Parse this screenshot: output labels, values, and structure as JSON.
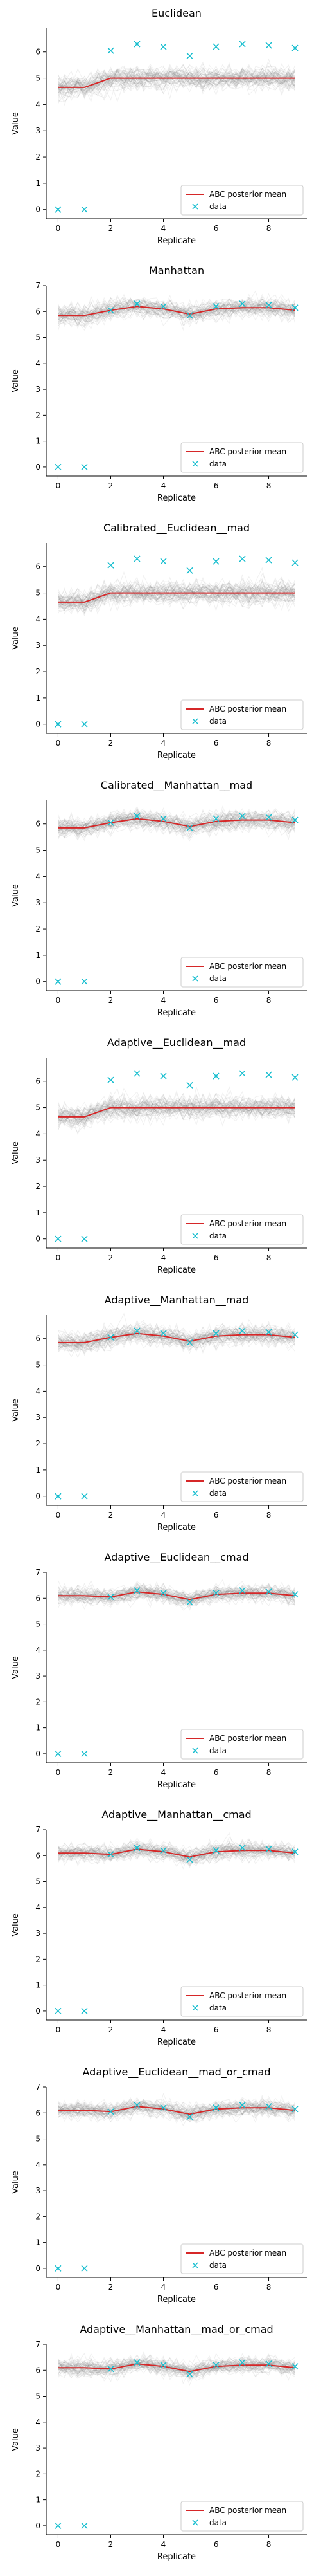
{
  "common": {
    "xlabel": "Replicate",
    "ylabel": "Value",
    "xticks": [
      0,
      2,
      4,
      6,
      8
    ],
    "yticks": [
      0,
      1,
      2,
      3,
      4,
      5,
      6,
      7
    ],
    "legend": {
      "mean_label": "ABC posterior mean",
      "data_label": "data",
      "placement": "lower-right"
    },
    "colors": {
      "mean": "#d62728",
      "data": "#17becf",
      "samples": "#808080"
    }
  },
  "chart_data": [
    {
      "type": "line",
      "title": "Euclidean",
      "xlabel": "Replicate",
      "ylabel": "Value",
      "xlim": [
        -0.45,
        9.45
      ],
      "ylim": [
        -0.35,
        6.9
      ],
      "yticks": [
        0,
        1,
        2,
        3,
        4,
        5,
        6
      ],
      "x": [
        0,
        1,
        2,
        3,
        4,
        5,
        6,
        7,
        8,
        9
      ],
      "series": [
        {
          "name": "ABC posterior mean",
          "values": [
            4.65,
            4.65,
            5.0,
            5.0,
            5.0,
            5.0,
            5.0,
            5.0,
            5.0,
            5.0
          ],
          "band": 0.4
        },
        {
          "name": "data",
          "values": [
            0.0,
            0.0,
            6.05,
            6.3,
            6.2,
            5.85,
            6.2,
            6.3,
            6.25,
            6.15
          ]
        }
      ]
    },
    {
      "type": "line",
      "title": "Manhattan",
      "xlabel": "Replicate",
      "ylabel": "Value",
      "xlim": [
        -0.45,
        9.45
      ],
      "ylim": [
        -0.35,
        7.0
      ],
      "yticks": [
        0,
        1,
        2,
        3,
        4,
        5,
        6,
        7
      ],
      "x": [
        0,
        1,
        2,
        3,
        4,
        5,
        6,
        7,
        8,
        9
      ],
      "series": [
        {
          "name": "ABC posterior mean",
          "values": [
            5.85,
            5.85,
            6.05,
            6.2,
            6.1,
            5.9,
            6.1,
            6.15,
            6.15,
            6.05
          ],
          "band": 0.35
        },
        {
          "name": "data",
          "values": [
            0.0,
            0.0,
            6.05,
            6.3,
            6.2,
            5.85,
            6.2,
            6.3,
            6.25,
            6.15
          ]
        }
      ]
    },
    {
      "type": "line",
      "title": "Calibrated__Euclidean__mad",
      "xlabel": "Replicate",
      "ylabel": "Value",
      "xlim": [
        -0.45,
        9.45
      ],
      "ylim": [
        -0.35,
        6.9
      ],
      "yticks": [
        0,
        1,
        2,
        3,
        4,
        5,
        6
      ],
      "x": [
        0,
        1,
        2,
        3,
        4,
        5,
        6,
        7,
        8,
        9
      ],
      "series": [
        {
          "name": "ABC posterior mean",
          "values": [
            4.65,
            4.65,
            5.0,
            5.0,
            5.0,
            5.0,
            5.0,
            5.0,
            5.0,
            5.0
          ],
          "band": 0.4
        },
        {
          "name": "data",
          "values": [
            0.0,
            0.0,
            6.05,
            6.3,
            6.2,
            5.85,
            6.2,
            6.3,
            6.25,
            6.15
          ]
        }
      ]
    },
    {
      "type": "line",
      "title": "Calibrated__Manhattan__mad",
      "xlabel": "Replicate",
      "ylabel": "Value",
      "xlim": [
        -0.45,
        9.45
      ],
      "ylim": [
        -0.35,
        6.9
      ],
      "yticks": [
        0,
        1,
        2,
        3,
        4,
        5,
        6
      ],
      "x": [
        0,
        1,
        2,
        3,
        4,
        5,
        6,
        7,
        8,
        9
      ],
      "series": [
        {
          "name": "ABC posterior mean",
          "values": [
            5.85,
            5.85,
            6.05,
            6.2,
            6.1,
            5.9,
            6.1,
            6.15,
            6.15,
            6.05
          ],
          "band": 0.35
        },
        {
          "name": "data",
          "values": [
            0.0,
            0.0,
            6.05,
            6.3,
            6.2,
            5.85,
            6.2,
            6.3,
            6.25,
            6.15
          ]
        }
      ]
    },
    {
      "type": "line",
      "title": "Adaptive__Euclidean__mad",
      "xlabel": "Replicate",
      "ylabel": "Value",
      "xlim": [
        -0.45,
        9.45
      ],
      "ylim": [
        -0.35,
        6.9
      ],
      "yticks": [
        0,
        1,
        2,
        3,
        4,
        5,
        6
      ],
      "x": [
        0,
        1,
        2,
        3,
        4,
        5,
        6,
        7,
        8,
        9
      ],
      "series": [
        {
          "name": "ABC posterior mean",
          "values": [
            4.65,
            4.65,
            5.0,
            5.0,
            5.0,
            5.0,
            5.0,
            5.0,
            5.0,
            5.0
          ],
          "band": 0.4
        },
        {
          "name": "data",
          "values": [
            0.0,
            0.0,
            6.05,
            6.3,
            6.2,
            5.85,
            6.2,
            6.3,
            6.25,
            6.15
          ]
        }
      ]
    },
    {
      "type": "line",
      "title": "Adaptive__Manhattan__mad",
      "xlabel": "Replicate",
      "ylabel": "Value",
      "xlim": [
        -0.45,
        9.45
      ],
      "ylim": [
        -0.35,
        6.9
      ],
      "yticks": [
        0,
        1,
        2,
        3,
        4,
        5,
        6
      ],
      "x": [
        0,
        1,
        2,
        3,
        4,
        5,
        6,
        7,
        8,
        9
      ],
      "series": [
        {
          "name": "ABC posterior mean",
          "values": [
            5.85,
            5.85,
            6.05,
            6.2,
            6.1,
            5.9,
            6.1,
            6.15,
            6.15,
            6.05
          ],
          "band": 0.35
        },
        {
          "name": "data",
          "values": [
            0.0,
            0.0,
            6.05,
            6.3,
            6.2,
            5.85,
            6.2,
            6.3,
            6.25,
            6.15
          ]
        }
      ]
    },
    {
      "type": "line",
      "title": "Adaptive__Euclidean__cmad",
      "xlabel": "Replicate",
      "ylabel": "Value",
      "xlim": [
        -0.45,
        9.45
      ],
      "ylim": [
        -0.35,
        7.0
      ],
      "yticks": [
        0,
        1,
        2,
        3,
        4,
        5,
        6,
        7
      ],
      "x": [
        0,
        1,
        2,
        3,
        4,
        5,
        6,
        7,
        8,
        9
      ],
      "series": [
        {
          "name": "ABC posterior mean",
          "values": [
            6.1,
            6.1,
            6.05,
            6.25,
            6.15,
            5.95,
            6.15,
            6.2,
            6.2,
            6.1
          ],
          "band": 0.3
        },
        {
          "name": "data",
          "values": [
            0.0,
            0.0,
            6.05,
            6.3,
            6.2,
            5.85,
            6.2,
            6.3,
            6.25,
            6.15
          ]
        }
      ]
    },
    {
      "type": "line",
      "title": "Adaptive__Manhattan__cmad",
      "xlabel": "Replicate",
      "ylabel": "Value",
      "xlim": [
        -0.45,
        9.45
      ],
      "ylim": [
        -0.35,
        7.0
      ],
      "yticks": [
        0,
        1,
        2,
        3,
        4,
        5,
        6,
        7
      ],
      "x": [
        0,
        1,
        2,
        3,
        4,
        5,
        6,
        7,
        8,
        9
      ],
      "series": [
        {
          "name": "ABC posterior mean",
          "values": [
            6.1,
            6.1,
            6.05,
            6.25,
            6.15,
            5.95,
            6.15,
            6.2,
            6.2,
            6.1
          ],
          "band": 0.3
        },
        {
          "name": "data",
          "values": [
            0.0,
            0.0,
            6.05,
            6.3,
            6.2,
            5.85,
            6.2,
            6.3,
            6.25,
            6.15
          ]
        }
      ]
    },
    {
      "type": "line",
      "title": "Adaptive__Euclidean__mad_or_cmad",
      "xlabel": "Replicate",
      "ylabel": "Value",
      "xlim": [
        -0.45,
        9.45
      ],
      "ylim": [
        -0.35,
        7.0
      ],
      "yticks": [
        0,
        1,
        2,
        3,
        4,
        5,
        6,
        7
      ],
      "x": [
        0,
        1,
        2,
        3,
        4,
        5,
        6,
        7,
        8,
        9
      ],
      "series": [
        {
          "name": "ABC posterior mean",
          "values": [
            6.1,
            6.1,
            6.05,
            6.25,
            6.15,
            5.95,
            6.15,
            6.2,
            6.2,
            6.1
          ],
          "band": 0.3
        },
        {
          "name": "data",
          "values": [
            0.0,
            0.0,
            6.05,
            6.3,
            6.2,
            5.85,
            6.2,
            6.3,
            6.25,
            6.15
          ]
        }
      ]
    },
    {
      "type": "line",
      "title": "Adaptive__Manhattan__mad_or_cmad",
      "xlabel": "Replicate",
      "ylabel": "Value",
      "xlim": [
        -0.45,
        9.45
      ],
      "ylim": [
        -0.35,
        7.0
      ],
      "yticks": [
        0,
        1,
        2,
        3,
        4,
        5,
        6,
        7
      ],
      "x": [
        0,
        1,
        2,
        3,
        4,
        5,
        6,
        7,
        8,
        9
      ],
      "series": [
        {
          "name": "ABC posterior mean",
          "values": [
            6.1,
            6.1,
            6.05,
            6.25,
            6.15,
            5.95,
            6.15,
            6.2,
            6.2,
            6.1
          ],
          "band": 0.3
        },
        {
          "name": "data",
          "values": [
            0.0,
            0.0,
            6.05,
            6.3,
            6.2,
            5.85,
            6.2,
            6.3,
            6.25,
            6.15
          ]
        }
      ]
    }
  ]
}
